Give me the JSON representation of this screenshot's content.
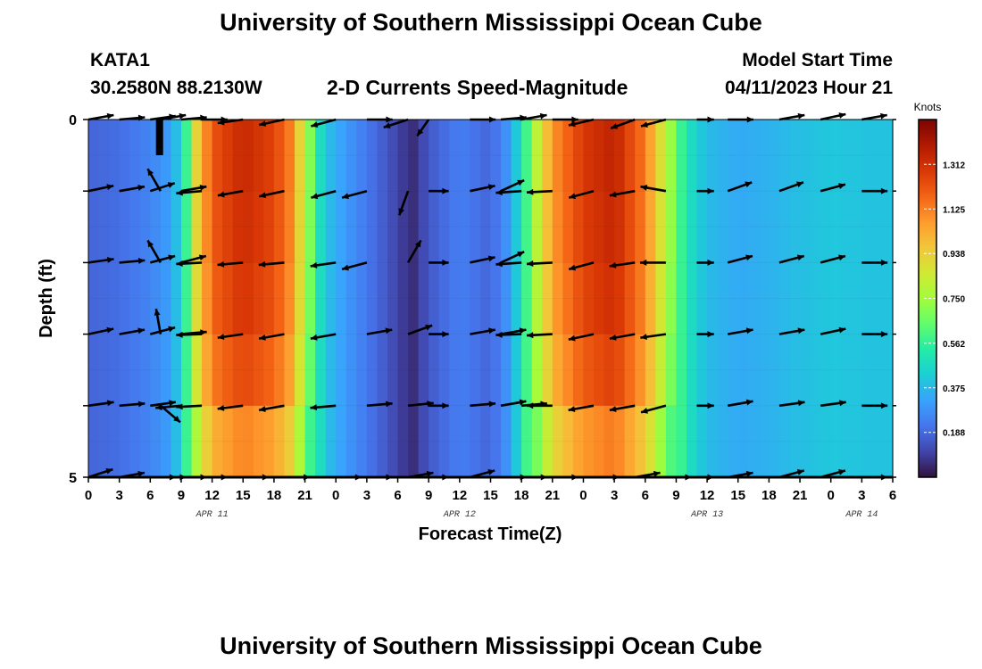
{
  "title": "University of Southern Mississippi Ocean Cube",
  "footer_title": "University of Southern Mississippi Ocean Cube",
  "station": {
    "name": "KATA1",
    "coords": "30.2580N  88.2130W"
  },
  "subtitle": "2-D Currents Speed-Magnitude",
  "model": {
    "label": "Model Start Time",
    "value": "04/11/2023 Hour 21"
  },
  "chart_data": {
    "type": "heatmap",
    "title": "2-D Currents Speed-Magnitude",
    "xlabel": "Forecast Time(Z)",
    "ylabel": "Depth (ft)",
    "x_hours": [
      0,
      3,
      6,
      9,
      12,
      15,
      18,
      21,
      24,
      27,
      30,
      33,
      36,
      39,
      42,
      45,
      48,
      51,
      54,
      57,
      60,
      63,
      66,
      69,
      72,
      75,
      78
    ],
    "x_tick_labels": [
      "0",
      "3",
      "6",
      "9",
      "12",
      "15",
      "18",
      "21",
      "0",
      "3",
      "6",
      "9",
      "12",
      "15",
      "18",
      "21",
      "0",
      "3",
      "6",
      "9",
      "12",
      "15",
      "18",
      "21",
      "0",
      "3",
      "6"
    ],
    "date_labels": [
      {
        "label": "APR 11",
        "hour": 12
      },
      {
        "label": "APR 12",
        "hour": 36
      },
      {
        "label": "APR 13",
        "hour": 60
      },
      {
        "label": "APR 14",
        "hour": 75
      }
    ],
    "y_tick_labels": [
      {
        "depth": 0,
        "label": "0"
      },
      {
        "depth": 5,
        "label": "5"
      }
    ],
    "ylim": [
      0,
      5
    ],
    "xlim": [
      0,
      78
    ],
    "speed_profile_knots": [
      [
        0,
        0.18
      ],
      [
        3,
        0.2
      ],
      [
        6,
        0.25
      ],
      [
        8,
        0.32
      ],
      [
        9,
        0.45
      ],
      [
        9.6,
        0.6
      ],
      [
        10.5,
        0.9
      ],
      [
        12,
        1.18
      ],
      [
        15,
        1.3
      ],
      [
        18,
        1.22
      ],
      [
        19.5,
        1.1
      ],
      [
        21,
        0.8
      ],
      [
        22,
        0.55
      ],
      [
        23,
        0.4
      ],
      [
        25,
        0.3
      ],
      [
        27,
        0.22
      ],
      [
        29,
        0.15
      ],
      [
        30,
        0.1
      ],
      [
        31.5,
        0.06
      ],
      [
        33,
        0.15
      ],
      [
        36,
        0.24
      ],
      [
        39,
        0.18
      ],
      [
        40.5,
        0.28
      ],
      [
        42,
        0.48
      ],
      [
        43,
        0.7
      ],
      [
        45,
        1.05
      ],
      [
        48,
        1.25
      ],
      [
        51,
        1.32
      ],
      [
        54,
        1.1
      ],
      [
        56,
        0.78
      ],
      [
        58,
        0.5
      ],
      [
        60,
        0.38
      ],
      [
        63,
        0.34
      ],
      [
        66,
        0.36
      ],
      [
        69,
        0.39
      ],
      [
        72,
        0.41
      ],
      [
        75,
        0.4
      ],
      [
        78,
        0.4
      ]
    ],
    "depth_scaling": [
      1.0,
      1.03,
      1.02,
      1.0,
      0.96,
      0.86,
      0.74
    ],
    "colorbar": {
      "title": "Knots",
      "min": 0.0,
      "max": 1.5,
      "ticks": [
        "0.188",
        "0.375",
        "0.562",
        "0.750",
        "0.938",
        "1.125",
        "1.312"
      ],
      "colors": [
        "#30123b",
        "#4145ab",
        "#4675ed",
        "#39a2fc",
        "#1bcfd4",
        "#24eca6",
        "#61fc6c",
        "#a4fc3b",
        "#d1e834",
        "#f3c63a",
        "#fe9b2d",
        "#f36315",
        "#d93806",
        "#b11901",
        "#7a0403"
      ]
    },
    "vectors": {
      "depth_rows": [
        0,
        1,
        2,
        3,
        4,
        5
      ],
      "hours": [
        0,
        3,
        6,
        7,
        9,
        11,
        15,
        19,
        24,
        27,
        31,
        33,
        37,
        40,
        42,
        45,
        49,
        53,
        56,
        59,
        62,
        67,
        71,
        75
      ],
      "angle_deg": [
        [
          10,
          5,
          8,
          10,
          5,
          0,
          188,
          192,
          195,
          0,
          198,
          235,
          0,
          5,
          10,
          0,
          193,
          200,
          195,
          0,
          0,
          10,
          12,
          10
        ],
        [
          12,
          10,
          18,
          120,
          10,
          185,
          190,
          192,
          195,
          195,
          250,
          0,
          12,
          25,
          184,
          183,
          195,
          190,
          170,
          0,
          20,
          20,
          15,
          0
        ],
        [
          8,
          5,
          15,
          120,
          15,
          183,
          185,
          185,
          188,
          195,
          60,
          0,
          12,
          25,
          184,
          183,
          195,
          188,
          180,
          0,
          15,
          15,
          15,
          0
        ],
        [
          12,
          10,
          15,
          100,
          5,
          182,
          188,
          190,
          190,
          10,
          20,
          0,
          10,
          10,
          182,
          183,
          192,
          190,
          188,
          0,
          10,
          10,
          12,
          0
        ],
        [
          8,
          5,
          8,
          320,
          185,
          183,
          187,
          190,
          185,
          5,
          6,
          0,
          5,
          10,
          5,
          180,
          190,
          190,
          195,
          0,
          10,
          8,
          8,
          0
        ],
        [
          18,
          10,
          0,
          0,
          0,
          0,
          0,
          0,
          0,
          0,
          10,
          0,
          15,
          0,
          0,
          0,
          0,
          10,
          0,
          0,
          10,
          15,
          15,
          0
        ]
      ],
      "length_units": [
        0.9,
        0.9,
        0.9,
        0.9,
        0.9,
        0.9,
        0.9,
        0.9,
        0.9,
        0.9,
        0.9,
        0.7,
        0.9,
        0.9,
        0.9,
        0.9,
        0.9,
        0.9,
        0.9,
        0.6,
        0.9,
        0.9,
        0.9,
        0.9
      ]
    }
  }
}
